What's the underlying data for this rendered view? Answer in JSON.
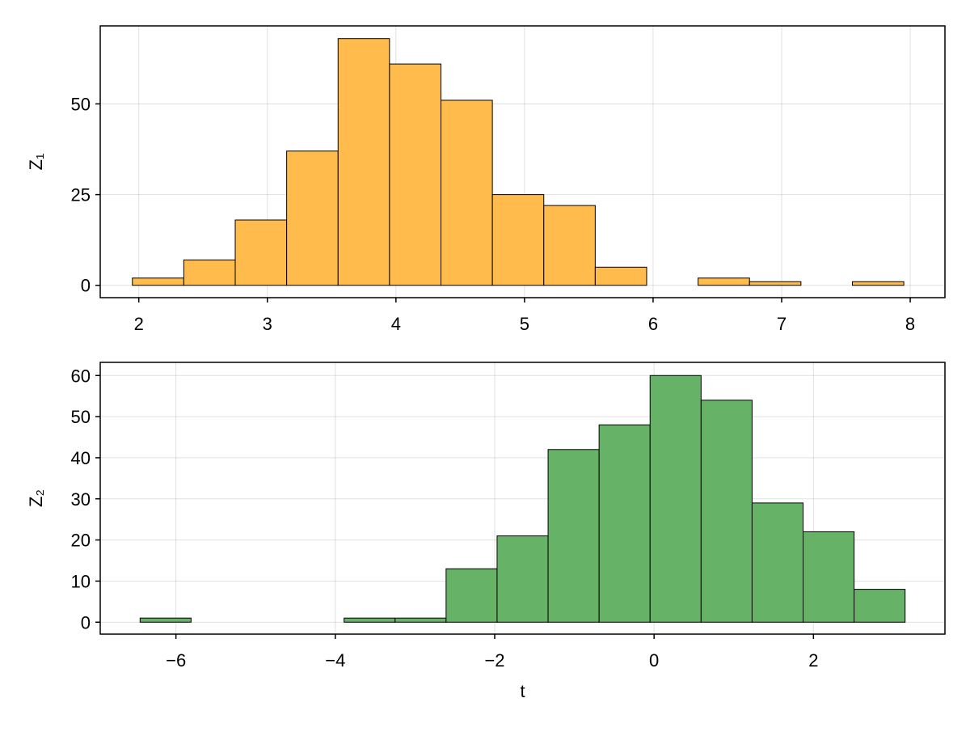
{
  "chart_data": [
    {
      "type": "bar",
      "bar_color": "#FFBC4C",
      "ylabel": "Z₁",
      "xlabel": "",
      "xlim": [
        1.7,
        8.27
      ],
      "ylim": [
        -3.4,
        71.5
      ],
      "xticks": [
        2,
        3,
        4,
        5,
        6,
        7,
        8
      ],
      "xtick_labels": [
        "2",
        "3",
        "4",
        "5",
        "6",
        "7",
        "8"
      ],
      "yticks": [
        0,
        25,
        50
      ],
      "ytick_labels": [
        "0",
        "25",
        "50"
      ],
      "grid": true,
      "bins": [
        {
          "x0": 1.95,
          "x1": 2.35,
          "count": 2
        },
        {
          "x0": 2.35,
          "x1": 2.75,
          "count": 7
        },
        {
          "x0": 2.75,
          "x1": 3.15,
          "count": 18
        },
        {
          "x0": 3.15,
          "x1": 3.55,
          "count": 37
        },
        {
          "x0": 3.55,
          "x1": 3.95,
          "count": 68
        },
        {
          "x0": 3.95,
          "x1": 4.35,
          "count": 61
        },
        {
          "x0": 4.35,
          "x1": 4.75,
          "count": 51
        },
        {
          "x0": 4.75,
          "x1": 5.15,
          "count": 25
        },
        {
          "x0": 5.15,
          "x1": 5.55,
          "count": 22
        },
        {
          "x0": 5.55,
          "x1": 5.95,
          "count": 5
        },
        {
          "x0": 5.95,
          "x1": 6.35,
          "count": 0
        },
        {
          "x0": 6.35,
          "x1": 6.75,
          "count": 2
        },
        {
          "x0": 6.75,
          "x1": 7.15,
          "count": 1
        },
        {
          "x0": 7.15,
          "x1": 7.55,
          "count": 0
        },
        {
          "x0": 7.55,
          "x1": 7.95,
          "count": 1
        }
      ]
    },
    {
      "type": "bar",
      "bar_color": "#66B266",
      "ylabel": "Z₂",
      "xlabel": "t",
      "xlim": [
        -6.95,
        3.65
      ],
      "ylim": [
        -2.9,
        63.2
      ],
      "xticks": [
        -6,
        -4,
        -2,
        0,
        2
      ],
      "xtick_labels": [
        "−6",
        "−4",
        "−2",
        "0",
        "2"
      ],
      "yticks": [
        0,
        10,
        20,
        30,
        40,
        50,
        60
      ],
      "ytick_labels": [
        "0",
        "10",
        "20",
        "30",
        "40",
        "50",
        "60"
      ],
      "grid": true,
      "bins": [
        {
          "x0": -6.45,
          "x1": -5.81,
          "count": 1
        },
        {
          "x0": -5.81,
          "x1": -5.17,
          "count": 0
        },
        {
          "x0": -5.17,
          "x1": -4.53,
          "count": 0
        },
        {
          "x0": -4.53,
          "x1": -3.89,
          "count": 0
        },
        {
          "x0": -3.89,
          "x1": -3.25,
          "count": 1
        },
        {
          "x0": -3.25,
          "x1": -2.61,
          "count": 1
        },
        {
          "x0": -2.61,
          "x1": -1.97,
          "count": 13
        },
        {
          "x0": -1.97,
          "x1": -1.33,
          "count": 21
        },
        {
          "x0": -1.33,
          "x1": -0.69,
          "count": 42
        },
        {
          "x0": -0.69,
          "x1": -0.05,
          "count": 48
        },
        {
          "x0": -0.05,
          "x1": 0.59,
          "count": 60
        },
        {
          "x0": 0.59,
          "x1": 1.23,
          "count": 54
        },
        {
          "x0": 1.23,
          "x1": 1.87,
          "count": 29
        },
        {
          "x0": 1.87,
          "x1": 2.51,
          "count": 22
        },
        {
          "x0": 2.51,
          "x1": 3.15,
          "count": 8
        }
      ]
    }
  ]
}
